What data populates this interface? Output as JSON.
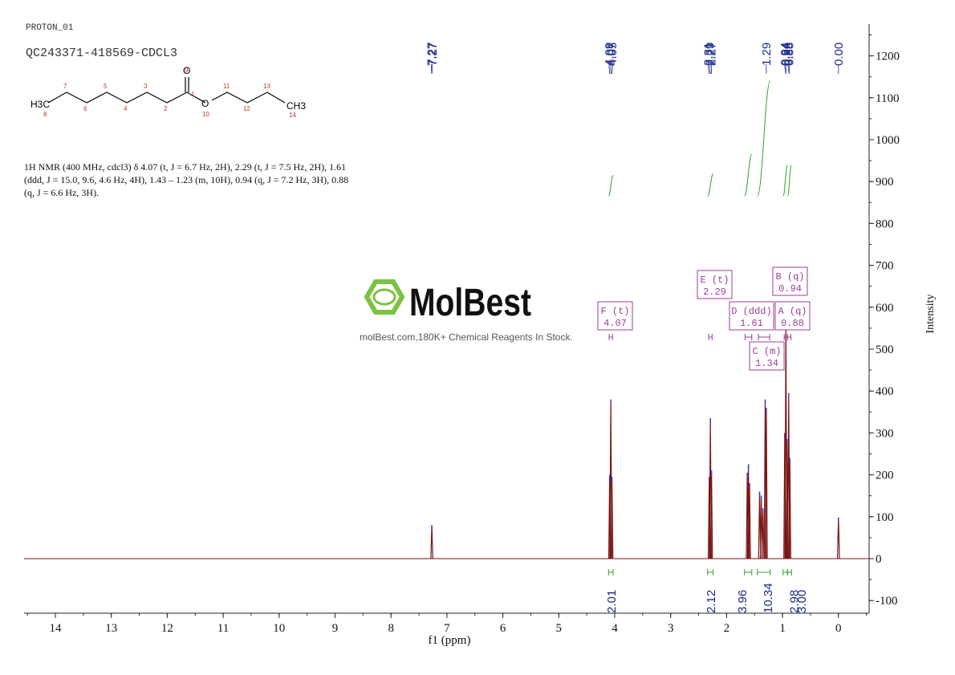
{
  "header": {
    "experiment": "PROTON_01",
    "sample": "QC243371-418569-CDCL3"
  },
  "structure": {
    "group_left": "H3C",
    "group_right": "CH3",
    "oxygen_carbonyl": "O",
    "oxygen_ester": "O",
    "atom_numbers": [
      "8",
      "7",
      "6",
      "5",
      "4",
      "3",
      "2",
      "1",
      "9",
      "10",
      "11",
      "12",
      "13",
      "14"
    ]
  },
  "nmr_summary": {
    "text": "1H NMR (400 MHz, cdcl3) δ 4.07 (t, J = 6.7 Hz, 2H), 2.29 (t, J = 7.5 Hz, 2H), 1.61 (ddd, J = 15.0, 9.6, 4.6 Hz, 4H), 1.43 – 1.23 (m, 10H), 0.94 (q, J = 7.2 Hz, 3H), 0.88 (q, J = 6.6 Hz, 3H)."
  },
  "watermark": {
    "brand": "MolBest",
    "tagline": "molBest.com,180K+ Chemical Reagents In Stock."
  },
  "colors": {
    "spectrum": "#7a1414",
    "integral_curve": "#2ca02c",
    "peak_label": "#1a2a8a",
    "multiplet_box": "#9b3d9b",
    "brand_green": "#7cc242"
  },
  "chart_data": {
    "type": "line",
    "xlabel": "f1 (ppm)",
    "ylabel": "Intensity",
    "xlim": [
      14.5,
      -0.5
    ],
    "ylim": [
      -120,
      1280
    ],
    "x_reversed": true,
    "x_ticks": [
      14,
      13,
      12,
      11,
      10,
      9,
      8,
      7,
      6,
      5,
      4,
      3,
      2,
      1,
      0
    ],
    "y_ticks": [
      -100,
      0,
      100,
      200,
      300,
      400,
      500,
      600,
      700,
      800,
      900,
      1000,
      1100,
      1200
    ],
    "peaks": [
      {
        "ppm": 7.27,
        "height": 80
      },
      {
        "ppm": 4.09,
        "height": 200
      },
      {
        "ppm": 4.07,
        "height": 380
      },
      {
        "ppm": 4.05,
        "height": 195
      },
      {
        "ppm": 2.31,
        "height": 195
      },
      {
        "ppm": 2.29,
        "height": 335
      },
      {
        "ppm": 2.27,
        "height": 210
      },
      {
        "ppm": 1.63,
        "height": 205
      },
      {
        "ppm": 1.61,
        "height": 225
      },
      {
        "ppm": 1.59,
        "height": 180
      },
      {
        "ppm": 1.41,
        "height": 160
      },
      {
        "ppm": 1.38,
        "height": 150
      },
      {
        "ppm": 1.35,
        "height": 120
      },
      {
        "ppm": 1.31,
        "height": 380
      },
      {
        "ppm": 1.29,
        "height": 360
      },
      {
        "ppm": 0.96,
        "height": 300
      },
      {
        "ppm": 0.94,
        "height": 560
      },
      {
        "ppm": 0.92,
        "height": 285
      },
      {
        "ppm": 0.89,
        "height": 395
      },
      {
        "ppm": 0.87,
        "height": 240
      },
      {
        "ppm": 0.0,
        "height": 98
      }
    ],
    "peak_labels": [
      "7.27",
      "7.27",
      "4.09",
      "4.07",
      "4.05",
      "2.31",
      "2.29",
      "2.27",
      "1.29",
      "0.94",
      "0.94",
      "0.88",
      "0.88",
      "0.00"
    ],
    "peak_label_ppm": [
      7.28,
      7.26,
      4.1,
      4.07,
      4.04,
      2.33,
      2.3,
      2.27,
      1.29,
      0.96,
      0.94,
      0.9,
      0.88,
      0.0
    ],
    "peak_label_targets": [
      7.27,
      7.27,
      4.09,
      4.07,
      4.05,
      2.31,
      2.29,
      2.27,
      1.29,
      0.94,
      0.94,
      0.88,
      0.88,
      0.0
    ],
    "multiplets": [
      {
        "id": "F",
        "type": "t",
        "shift": "4.07",
        "center_ppm": 4.07,
        "range_ppm": [
          4.1,
          4.04
        ]
      },
      {
        "id": "E",
        "type": "t",
        "shift": "2.29",
        "center_ppm": 2.29,
        "range_ppm": [
          2.32,
          2.26
        ]
      },
      {
        "id": "D",
        "type": "ddd",
        "shift": "1.61",
        "center_ppm": 1.61,
        "range_ppm": [
          1.67,
          1.55
        ]
      },
      {
        "id": "C",
        "type": "m",
        "shift": "1.34",
        "center_ppm": 1.34,
        "range_ppm": [
          1.43,
          1.23
        ]
      },
      {
        "id": "B",
        "type": "q",
        "shift": "0.94",
        "center_ppm": 0.94,
        "range_ppm": [
          0.97,
          0.91
        ]
      },
      {
        "id": "A",
        "type": "q",
        "shift": "0.88",
        "center_ppm": 0.88,
        "range_ppm": [
          0.91,
          0.85
        ]
      }
    ],
    "integrals": [
      {
        "value": "2.01",
        "range_ppm": [
          4.11,
          4.03
        ],
        "curve_bottom": 865,
        "curve_top": 915
      },
      {
        "value": "2.12",
        "range_ppm": [
          2.34,
          2.24
        ],
        "curve_bottom": 865,
        "curve_top": 918
      },
      {
        "value": "3.96",
        "range_ppm": [
          1.68,
          1.55
        ],
        "curve_bottom": 865,
        "curve_top": 965
      },
      {
        "value": "10.34",
        "range_ppm": [
          1.45,
          1.22
        ],
        "curve_bottom": 865,
        "curve_top": 1140
      },
      {
        "value": "2.98",
        "range_ppm": [
          0.99,
          0.91
        ],
        "curve_bottom": 865,
        "curve_top": 940
      },
      {
        "value": "3.00",
        "range_ppm": [
          0.91,
          0.84
        ],
        "curve_bottom": 865,
        "curve_top": 940
      }
    ]
  }
}
